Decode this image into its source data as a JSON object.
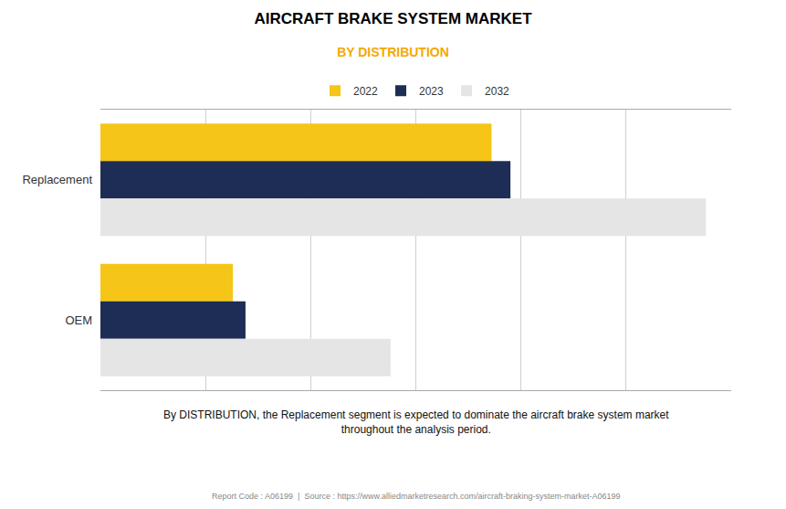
{
  "chart_data": {
    "type": "bar",
    "orientation": "horizontal",
    "title": "AIRCRAFT BRAKE SYSTEM MARKET",
    "subtitle": "BY DISTRIBUTION",
    "categories": [
      "Replacement",
      "OEM"
    ],
    "series": [
      {
        "name": "2022",
        "color": "#F5C518",
        "values": [
          6.2,
          2.1
        ]
      },
      {
        "name": "2023",
        "color": "#1E2D55",
        "values": [
          6.5,
          2.3
        ]
      },
      {
        "name": "2032",
        "color": "#E5E5E5",
        "values": [
          9.6,
          4.6
        ]
      }
    ],
    "xlim": [
      0,
      10
    ],
    "xticks": [
      0,
      1.6666666666666667,
      3.3333333333333335,
      5,
      6.666666666666667,
      8.333333333333334,
      10
    ],
    "grid": true,
    "legend": "top",
    "tick_labels": "y",
    "annotations": [
      "By DISTRIBUTION, the Replacement segment is expected to dominate the aircraft brake system market\nthroughout the analysis period.",
      "Report Code : A06199  |  Source : https://www.alliedmarketresearch.com/aircraft-braking-system-market-A06199"
    ]
  }
}
